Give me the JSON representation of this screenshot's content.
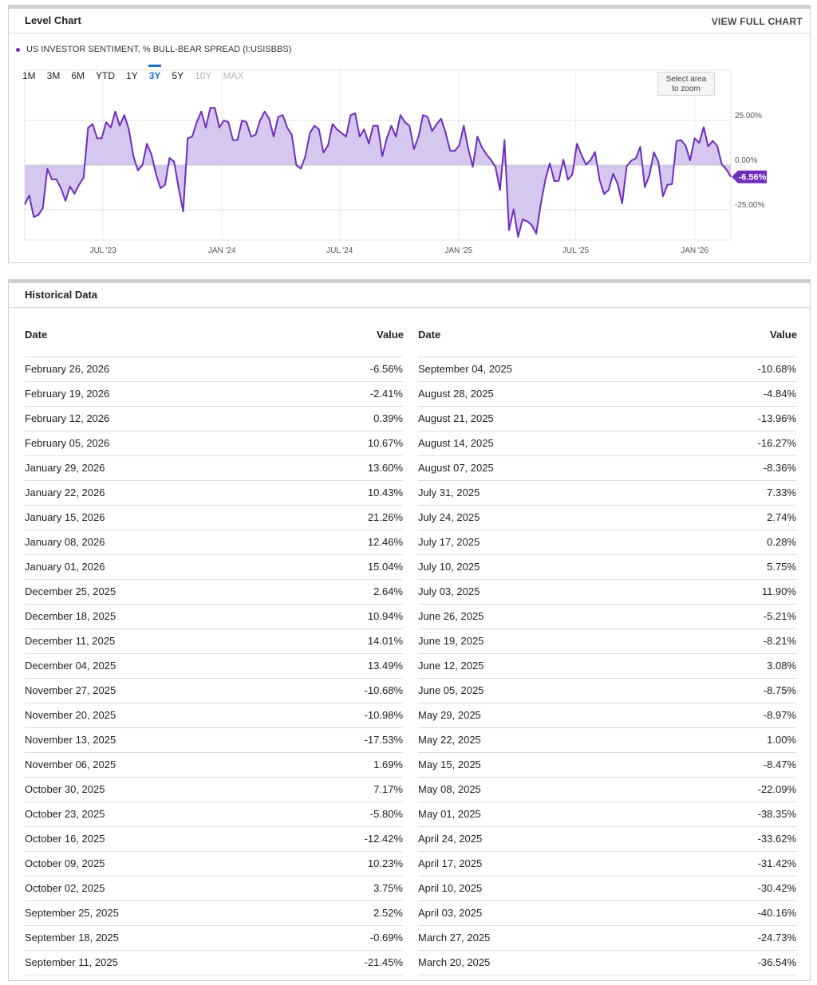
{
  "chart_panel": {
    "title": "Level Chart",
    "link": "VIEW FULL CHART",
    "legend": "US INVESTOR SENTIMENT, % BULL-BEAR SPREAD (I:USISBBS)",
    "zoom_tabs": [
      "1M",
      "3M",
      "6M",
      "YTD",
      "1Y",
      "3Y",
      "5Y",
      "10Y",
      "MAX"
    ],
    "active_tab": "3Y",
    "disabled_tabs": [
      "10Y",
      "MAX"
    ],
    "zoom_hint_line1": "Select area",
    "zoom_hint_line2": "to zoom"
  },
  "chart_data": {
    "type": "area",
    "series_name": "US INVESTOR SENTIMENT, % BULL-BEAR SPREAD (I:USISBBS)",
    "x_range": [
      "2023-03-02",
      "2026-02-26"
    ],
    "x_tick_labels": [
      {
        "date": "2023-07-01",
        "label": "JUL '23"
      },
      {
        "date": "2024-01-01",
        "label": "JAN '24"
      },
      {
        "date": "2024-07-01",
        "label": "JUL '24"
      },
      {
        "date": "2025-01-01",
        "label": "JAN '25"
      },
      {
        "date": "2025-07-01",
        "label": "JUL '25"
      },
      {
        "date": "2026-01-01",
        "label": "JAN '26"
      }
    ],
    "y_ticks": [
      {
        "value": 25,
        "label": "25.00%"
      },
      {
        "value": 0,
        "label": "0.00%"
      },
      {
        "value": -25,
        "label": "-25.00%"
      }
    ],
    "ylim": [
      -42,
      50
    ],
    "last_value_label": "-6.56%",
    "last_value": -6.56,
    "line_color": "#6f2dbd",
    "fill_color": "#d5c7ee",
    "points": [
      [
        "2023-03-02",
        -22
      ],
      [
        "2023-03-09",
        -17
      ],
      [
        "2023-03-16",
        -29
      ],
      [
        "2023-03-23",
        -28
      ],
      [
        "2023-03-30",
        -24
      ],
      [
        "2023-04-06",
        -2
      ],
      [
        "2023-04-13",
        -8
      ],
      [
        "2023-04-20",
        -8
      ],
      [
        "2023-04-27",
        -13
      ],
      [
        "2023-05-04",
        -20
      ],
      [
        "2023-05-11",
        -12
      ],
      [
        "2023-05-18",
        -16
      ],
      [
        "2023-05-25",
        -11
      ],
      [
        "2023-06-01",
        -7
      ],
      [
        "2023-06-08",
        21
      ],
      [
        "2023-06-15",
        23
      ],
      [
        "2023-06-22",
        15
      ],
      [
        "2023-06-29",
        15
      ],
      [
        "2023-07-06",
        24
      ],
      [
        "2023-07-13",
        21
      ],
      [
        "2023-07-20",
        30
      ],
      [
        "2023-07-27",
        22
      ],
      [
        "2023-08-03",
        28
      ],
      [
        "2023-08-10",
        20
      ],
      [
        "2023-08-17",
        5
      ],
      [
        "2023-08-24",
        -3
      ],
      [
        "2023-08-31",
        0
      ],
      [
        "2023-09-07",
        12
      ],
      [
        "2023-09-14",
        6
      ],
      [
        "2023-09-21",
        -5
      ],
      [
        "2023-09-28",
        -13
      ],
      [
        "2023-10-05",
        -11
      ],
      [
        "2023-10-12",
        4
      ],
      [
        "2023-10-19",
        2
      ],
      [
        "2023-10-26",
        -13
      ],
      [
        "2023-11-02",
        -26
      ],
      [
        "2023-11-09",
        15
      ],
      [
        "2023-11-16",
        16
      ],
      [
        "2023-11-23",
        24
      ],
      [
        "2023-11-30",
        30
      ],
      [
        "2023-12-07",
        21
      ],
      [
        "2023-12-14",
        32
      ],
      [
        "2023-12-21",
        32
      ],
      [
        "2023-12-28",
        21
      ],
      [
        "2024-01-04",
        25
      ],
      [
        "2024-01-11",
        24
      ],
      [
        "2024-01-18",
        14
      ],
      [
        "2024-01-25",
        14
      ],
      [
        "2024-02-01",
        25
      ],
      [
        "2024-02-08",
        24
      ],
      [
        "2024-02-15",
        16
      ],
      [
        "2024-02-22",
        17
      ],
      [
        "2024-02-29",
        25
      ],
      [
        "2024-03-07",
        30
      ],
      [
        "2024-03-14",
        26
      ],
      [
        "2024-03-21",
        16
      ],
      [
        "2024-03-28",
        27
      ],
      [
        "2024-04-04",
        28
      ],
      [
        "2024-04-11",
        21
      ],
      [
        "2024-04-18",
        17
      ],
      [
        "2024-04-25",
        0
      ],
      [
        "2024-05-02",
        -2
      ],
      [
        "2024-05-09",
        5
      ],
      [
        "2024-05-16",
        18
      ],
      [
        "2024-05-23",
        22
      ],
      [
        "2024-05-30",
        20
      ],
      [
        "2024-06-06",
        7
      ],
      [
        "2024-06-13",
        11
      ],
      [
        "2024-06-20",
        23
      ],
      [
        "2024-06-27",
        20
      ],
      [
        "2024-07-04",
        18
      ],
      [
        "2024-07-11",
        16
      ],
      [
        "2024-07-18",
        28
      ],
      [
        "2024-07-25",
        29
      ],
      [
        "2024-08-01",
        16
      ],
      [
        "2024-08-08",
        20
      ],
      [
        "2024-08-15",
        12
      ],
      [
        "2024-08-22",
        22
      ],
      [
        "2024-08-29",
        22
      ],
      [
        "2024-09-05",
        5
      ],
      [
        "2024-09-12",
        15
      ],
      [
        "2024-09-19",
        22
      ],
      [
        "2024-09-26",
        16
      ],
      [
        "2024-10-03",
        28
      ],
      [
        "2024-10-10",
        24
      ],
      [
        "2024-10-17",
        22
      ],
      [
        "2024-10-24",
        9
      ],
      [
        "2024-10-31",
        16
      ],
      [
        "2024-11-07",
        28
      ],
      [
        "2024-11-14",
        27
      ],
      [
        "2024-11-21",
        19
      ],
      [
        "2024-11-28",
        23
      ],
      [
        "2024-12-05",
        26
      ],
      [
        "2024-12-12",
        18
      ],
      [
        "2024-12-19",
        8
      ],
      [
        "2024-12-26",
        8
      ],
      [
        "2025-01-02",
        11
      ],
      [
        "2025-01-09",
        22
      ],
      [
        "2025-01-16",
        9
      ],
      [
        "2025-01-23",
        -1
      ],
      [
        "2025-01-30",
        16
      ],
      [
        "2025-02-06",
        10
      ],
      [
        "2025-02-13",
        6
      ],
      [
        "2025-02-20",
        3
      ],
      [
        "2025-02-27",
        -1
      ],
      [
        "2025-03-06",
        -14
      ],
      [
        "2025-03-13",
        14
      ],
      [
        "2025-03-20",
        -36.54
      ],
      [
        "2025-03-27",
        -24.73
      ],
      [
        "2025-04-03",
        -40.16
      ],
      [
        "2025-04-10",
        -30.42
      ],
      [
        "2025-04-17",
        -31.42
      ],
      [
        "2025-04-24",
        -33.62
      ],
      [
        "2025-05-01",
        -38.35
      ],
      [
        "2025-05-08",
        -22.09
      ],
      [
        "2025-05-15",
        -8.47
      ],
      [
        "2025-05-22",
        1.0
      ],
      [
        "2025-05-29",
        -8.97
      ],
      [
        "2025-06-05",
        -8.75
      ],
      [
        "2025-06-12",
        3.08
      ],
      [
        "2025-06-19",
        -8.21
      ],
      [
        "2025-06-26",
        -5.21
      ],
      [
        "2025-07-03",
        11.9
      ],
      [
        "2025-07-10",
        5.75
      ],
      [
        "2025-07-17",
        0.28
      ],
      [
        "2025-07-24",
        2.74
      ],
      [
        "2025-07-31",
        7.33
      ],
      [
        "2025-08-07",
        -8.36
      ],
      [
        "2025-08-14",
        -16.27
      ],
      [
        "2025-08-21",
        -13.96
      ],
      [
        "2025-08-28",
        -4.84
      ],
      [
        "2025-09-04",
        -10.68
      ],
      [
        "2025-09-11",
        -21.45
      ],
      [
        "2025-09-18",
        -0.69
      ],
      [
        "2025-09-25",
        2.52
      ],
      [
        "2025-10-02",
        3.75
      ],
      [
        "2025-10-09",
        10.23
      ],
      [
        "2025-10-16",
        -12.42
      ],
      [
        "2025-10-23",
        -5.8
      ],
      [
        "2025-10-30",
        7.17
      ],
      [
        "2025-11-06",
        1.69
      ],
      [
        "2025-11-13",
        -17.53
      ],
      [
        "2025-11-20",
        -10.98
      ],
      [
        "2025-11-27",
        -10.68
      ],
      [
        "2025-12-04",
        13.49
      ],
      [
        "2025-12-11",
        14.01
      ],
      [
        "2025-12-18",
        10.94
      ],
      [
        "2025-12-25",
        2.64
      ],
      [
        "2026-01-01",
        15.04
      ],
      [
        "2026-01-08",
        12.46
      ],
      [
        "2026-01-15",
        21.26
      ],
      [
        "2026-01-22",
        10.43
      ],
      [
        "2026-01-29",
        13.6
      ],
      [
        "2026-02-05",
        10.67
      ],
      [
        "2026-02-12",
        0.39
      ],
      [
        "2026-02-19",
        -2.41
      ],
      [
        "2026-02-26",
        -6.56
      ]
    ]
  },
  "historical": {
    "title": "Historical Data",
    "col_date": "Date",
    "col_value": "Value",
    "left_rows": [
      {
        "date": "February 26, 2026",
        "value": "-6.56%"
      },
      {
        "date": "February 19, 2026",
        "value": "-2.41%"
      },
      {
        "date": "February 12, 2026",
        "value": "0.39%"
      },
      {
        "date": "February 05, 2026",
        "value": "10.67%"
      },
      {
        "date": "January 29, 2026",
        "value": "13.60%"
      },
      {
        "date": "January 22, 2026",
        "value": "10.43%"
      },
      {
        "date": "January 15, 2026",
        "value": "21.26%"
      },
      {
        "date": "January 08, 2026",
        "value": "12.46%"
      },
      {
        "date": "January 01, 2026",
        "value": "15.04%"
      },
      {
        "date": "December 25, 2025",
        "value": "2.64%"
      },
      {
        "date": "December 18, 2025",
        "value": "10.94%"
      },
      {
        "date": "December 11, 2025",
        "value": "14.01%"
      },
      {
        "date": "December 04, 2025",
        "value": "13.49%"
      },
      {
        "date": "November 27, 2025",
        "value": "-10.68%"
      },
      {
        "date": "November 20, 2025",
        "value": "-10.98%"
      },
      {
        "date": "November 13, 2025",
        "value": "-17.53%"
      },
      {
        "date": "November 06, 2025",
        "value": "1.69%"
      },
      {
        "date": "October 30, 2025",
        "value": "7.17%"
      },
      {
        "date": "October 23, 2025",
        "value": "-5.80%"
      },
      {
        "date": "October 16, 2025",
        "value": "-12.42%"
      },
      {
        "date": "October 09, 2025",
        "value": "10.23%"
      },
      {
        "date": "October 02, 2025",
        "value": "3.75%"
      },
      {
        "date": "September 25, 2025",
        "value": "2.52%"
      },
      {
        "date": "September 18, 2025",
        "value": "-0.69%"
      },
      {
        "date": "September 11, 2025",
        "value": "-21.45%"
      }
    ],
    "right_rows": [
      {
        "date": "September 04, 2025",
        "value": "-10.68%"
      },
      {
        "date": "August 28, 2025",
        "value": "-4.84%"
      },
      {
        "date": "August 21, 2025",
        "value": "-13.96%"
      },
      {
        "date": "August 14, 2025",
        "value": "-16.27%"
      },
      {
        "date": "August 07, 2025",
        "value": "-8.36%"
      },
      {
        "date": "July 31, 2025",
        "value": "7.33%"
      },
      {
        "date": "July 24, 2025",
        "value": "2.74%"
      },
      {
        "date": "July 17, 2025",
        "value": "0.28%"
      },
      {
        "date": "July 10, 2025",
        "value": "5.75%"
      },
      {
        "date": "July 03, 2025",
        "value": "11.90%"
      },
      {
        "date": "June 26, 2025",
        "value": "-5.21%"
      },
      {
        "date": "June 19, 2025",
        "value": "-8.21%"
      },
      {
        "date": "June 12, 2025",
        "value": "3.08%"
      },
      {
        "date": "June 05, 2025",
        "value": "-8.75%"
      },
      {
        "date": "May 29, 2025",
        "value": "-8.97%"
      },
      {
        "date": "May 22, 2025",
        "value": "1.00%"
      },
      {
        "date": "May 15, 2025",
        "value": "-8.47%"
      },
      {
        "date": "May 08, 2025",
        "value": "-22.09%"
      },
      {
        "date": "May 01, 2025",
        "value": "-38.35%"
      },
      {
        "date": "April 24, 2025",
        "value": "-33.62%"
      },
      {
        "date": "April 17, 2025",
        "value": "-31.42%"
      },
      {
        "date": "April 10, 2025",
        "value": "-30.42%"
      },
      {
        "date": "April 03, 2025",
        "value": "-40.16%"
      },
      {
        "date": "March 27, 2025",
        "value": "-24.73%"
      },
      {
        "date": "March 20, 2025",
        "value": "-36.54%"
      }
    ]
  }
}
